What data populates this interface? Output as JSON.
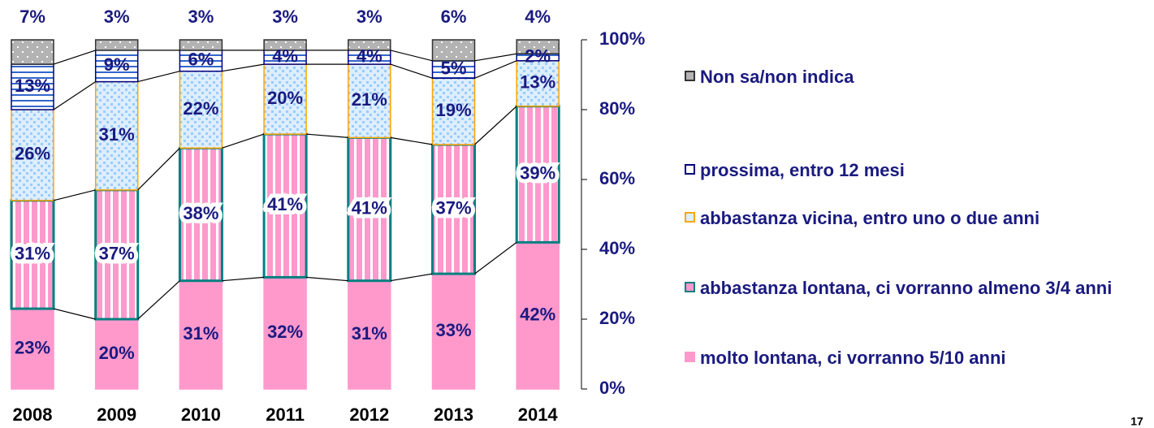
{
  "chart_data": {
    "type": "stacked-bar",
    "categories": [
      "2008",
      "2009",
      "2010",
      "2011",
      "2012",
      "2013",
      "2014"
    ],
    "series": [
      {
        "name": "molto lontana, ci vorranno 5/10 anni",
        "color": "#ff99cc",
        "border": "#ff99cc",
        "values": [
          23,
          20,
          31,
          32,
          31,
          33,
          42
        ],
        "value_labels": [
          "23%",
          "20%",
          "31%",
          "32%",
          "31%",
          "33%",
          "42%"
        ]
      },
      {
        "name": "abbastanza lontana, ci vorranno almeno 3/4 anni",
        "color": "#ff99cc",
        "border": "#008080",
        "values": [
          31,
          37,
          38,
          41,
          41,
          37,
          39
        ],
        "value_labels": [
          "31%",
          "37%",
          "38%",
          "41%",
          "41%",
          "37%",
          "39%"
        ]
      },
      {
        "name": "abbastanza vicina, entro uno o due anni",
        "color": "#99ccff",
        "border": "#ffa500",
        "values": [
          26,
          31,
          22,
          20,
          21,
          19,
          13
        ],
        "value_labels": [
          "26%",
          "31%",
          "22%",
          "20%",
          "21%",
          "19%",
          "13%"
        ]
      },
      {
        "name": "prossima, entro 12 mesi",
        "color": "#3366cc",
        "border": "#000080",
        "values": [
          13,
          9,
          6,
          4,
          4,
          5,
          2
        ],
        "value_labels": [
          "13%",
          "9%",
          "6%",
          "4%",
          "4%",
          "5%",
          "2%"
        ]
      },
      {
        "name": "Non sa/non indica",
        "color": "#b3b3b3",
        "border": "#333333",
        "values": [
          7,
          3,
          3,
          3,
          3,
          6,
          4
        ],
        "value_labels": [
          "7%",
          "3%",
          "3%",
          "3%",
          "3%",
          "6%",
          "4%"
        ]
      }
    ],
    "ylim": [
      0,
      100
    ],
    "yticks": [
      {
        "value": 0,
        "label": "0%"
      },
      {
        "value": 20,
        "label": "20%"
      },
      {
        "value": 40,
        "label": "40%"
      },
      {
        "value": 60,
        "label": "60%"
      },
      {
        "value": 80,
        "label": "80%"
      },
      {
        "value": 100,
        "label": "100%"
      }
    ],
    "y_axis_side": "right",
    "legend": "right",
    "page_number": "17"
  }
}
